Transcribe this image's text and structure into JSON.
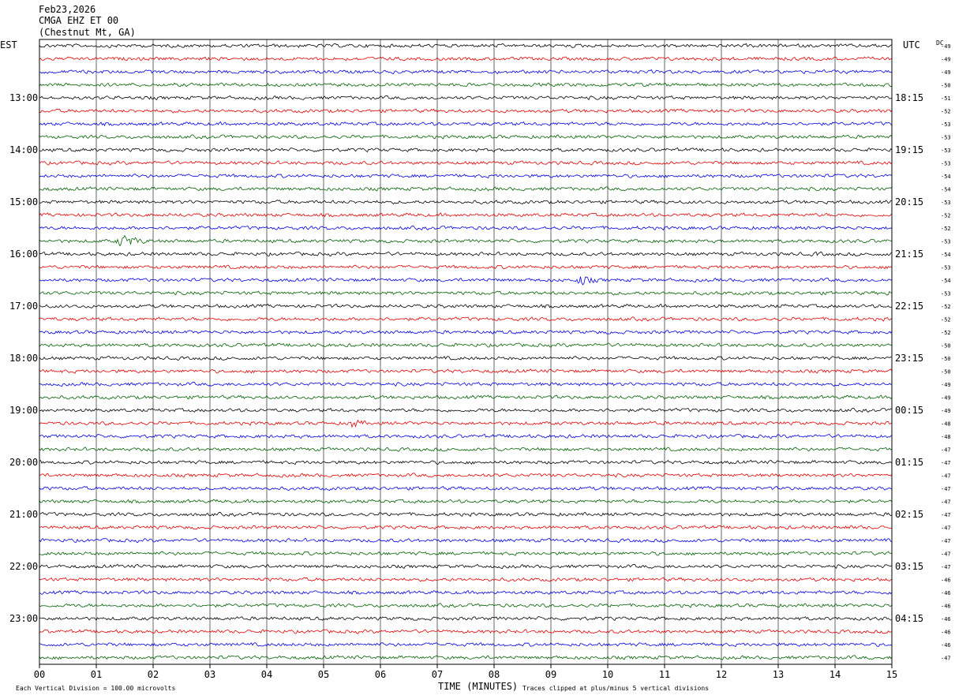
{
  "header": {
    "date": "Feb23,2026",
    "station": "CMGA EHZ ET 00",
    "location": "(Chestnut Mt, GA)"
  },
  "labels": {
    "left_zone": "EST",
    "right_zone": "UTC",
    "dc": "DC",
    "x_axis_title": "TIME (MINUTES)",
    "scale_note": "Each Vertical Division =  100.00 microvolts",
    "clip_note": "Traces clipped at plus/minus 5 vertical divisions"
  },
  "chart_data": {
    "type": "line",
    "description_axis": "helicorder",
    "x_ticks": [
      "00",
      "01",
      "02",
      "03",
      "04",
      "05",
      "06",
      "07",
      "08",
      "09",
      "10",
      "11",
      "12",
      "13",
      "14",
      "15"
    ],
    "xlim": [
      0,
      15
    ],
    "trace_count": 48,
    "trace_minutes": 15,
    "trace_colors": [
      "#000000",
      "#e00000",
      "#0000e0",
      "#006000"
    ],
    "left_hour_labels": [
      "13:00",
      "14:00",
      "15:00",
      "16:00",
      "17:00",
      "18:00",
      "19:00",
      "20:00",
      "21:00",
      "22:00",
      "23:00"
    ],
    "right_hour_labels": [
      "18:15",
      "19:15",
      "20:15",
      "21:15",
      "22:15",
      "23:15",
      "00:15",
      "01:15",
      "02:15",
      "03:15",
      "04:15"
    ],
    "dc_offsets": [
      "-49",
      "-49",
      "-49",
      "-50",
      "-51",
      "-52",
      "-53",
      "-53",
      "-53",
      "-53",
      "-54",
      "-54",
      "-53",
      "-52",
      "-52",
      "-53",
      "-54",
      "-53",
      "-54",
      "-53",
      "-52",
      "-52",
      "-52",
      "-50",
      "-50",
      "-50",
      "-49",
      "-49",
      "-49",
      "-48",
      "-48",
      "-47",
      "-47",
      "-47",
      "-47",
      "-47",
      "-47",
      "-47",
      "-47",
      "-47",
      "-47",
      "-46",
      "-46",
      "-46",
      "-46",
      "-46",
      "-46",
      "-47"
    ],
    "events": [
      {
        "trace": 15,
        "minute": 1.3,
        "duration": 1.0,
        "amplitude": 12
      },
      {
        "trace": 18,
        "minute": 9.4,
        "duration": 0.8,
        "amplitude": 10
      },
      {
        "trace": 29,
        "minute": 5.4,
        "duration": 0.7,
        "amplitude": 9
      },
      {
        "trace": 16,
        "minute": 13.6,
        "duration": 0.6,
        "amplitude": 5
      },
      {
        "trace": 19,
        "minute": 14.9,
        "duration": 0.2,
        "amplitude": 7
      },
      {
        "trace": 37,
        "minute": 14.0,
        "duration": 0.9,
        "amplitude": 5
      }
    ]
  }
}
